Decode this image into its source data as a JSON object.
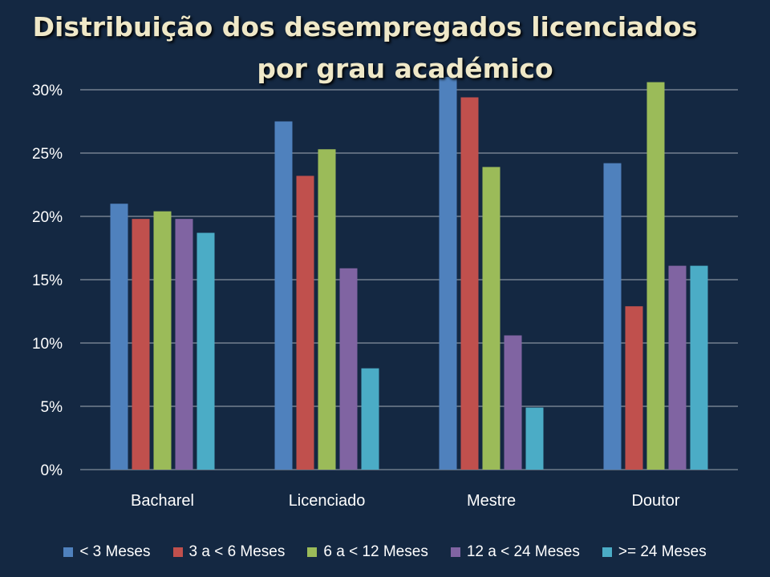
{
  "chart_data": {
    "type": "bar",
    "title_lines": [
      "Distribuição dos desempregados licenciados",
      "por  grau académico"
    ],
    "categories": [
      "Bacharel",
      "Licenciado",
      "Mestre",
      "Doutor"
    ],
    "series": [
      {
        "name": "< 3 Meses",
        "color": "#4f81bd",
        "values": [
          21.0,
          27.5,
          31.0,
          24.2
        ]
      },
      {
        "name": "3 a < 6 Meses",
        "color": "#c0504d",
        "values": [
          19.8,
          23.2,
          29.4,
          12.9
        ]
      },
      {
        "name": "6 a < 12 Meses",
        "color": "#9bbb59",
        "values": [
          20.4,
          25.3,
          23.9,
          30.6
        ]
      },
      {
        "name": "12 a < 24 Meses",
        "color": "#8064a2",
        "values": [
          19.8,
          15.9,
          10.6,
          16.1
        ]
      },
      {
        "name": ">= 24 Meses",
        "color": "#4bacc6",
        "values": [
          18.7,
          8.0,
          4.9,
          16.1
        ]
      }
    ],
    "yticks": [
      "0%",
      "5%",
      "10%",
      "15%",
      "20%",
      "25%",
      "30%"
    ],
    "ylim": [
      0,
      30
    ],
    "ylabel": "",
    "xlabel": "",
    "grid": true,
    "legend_position": "bottom"
  }
}
